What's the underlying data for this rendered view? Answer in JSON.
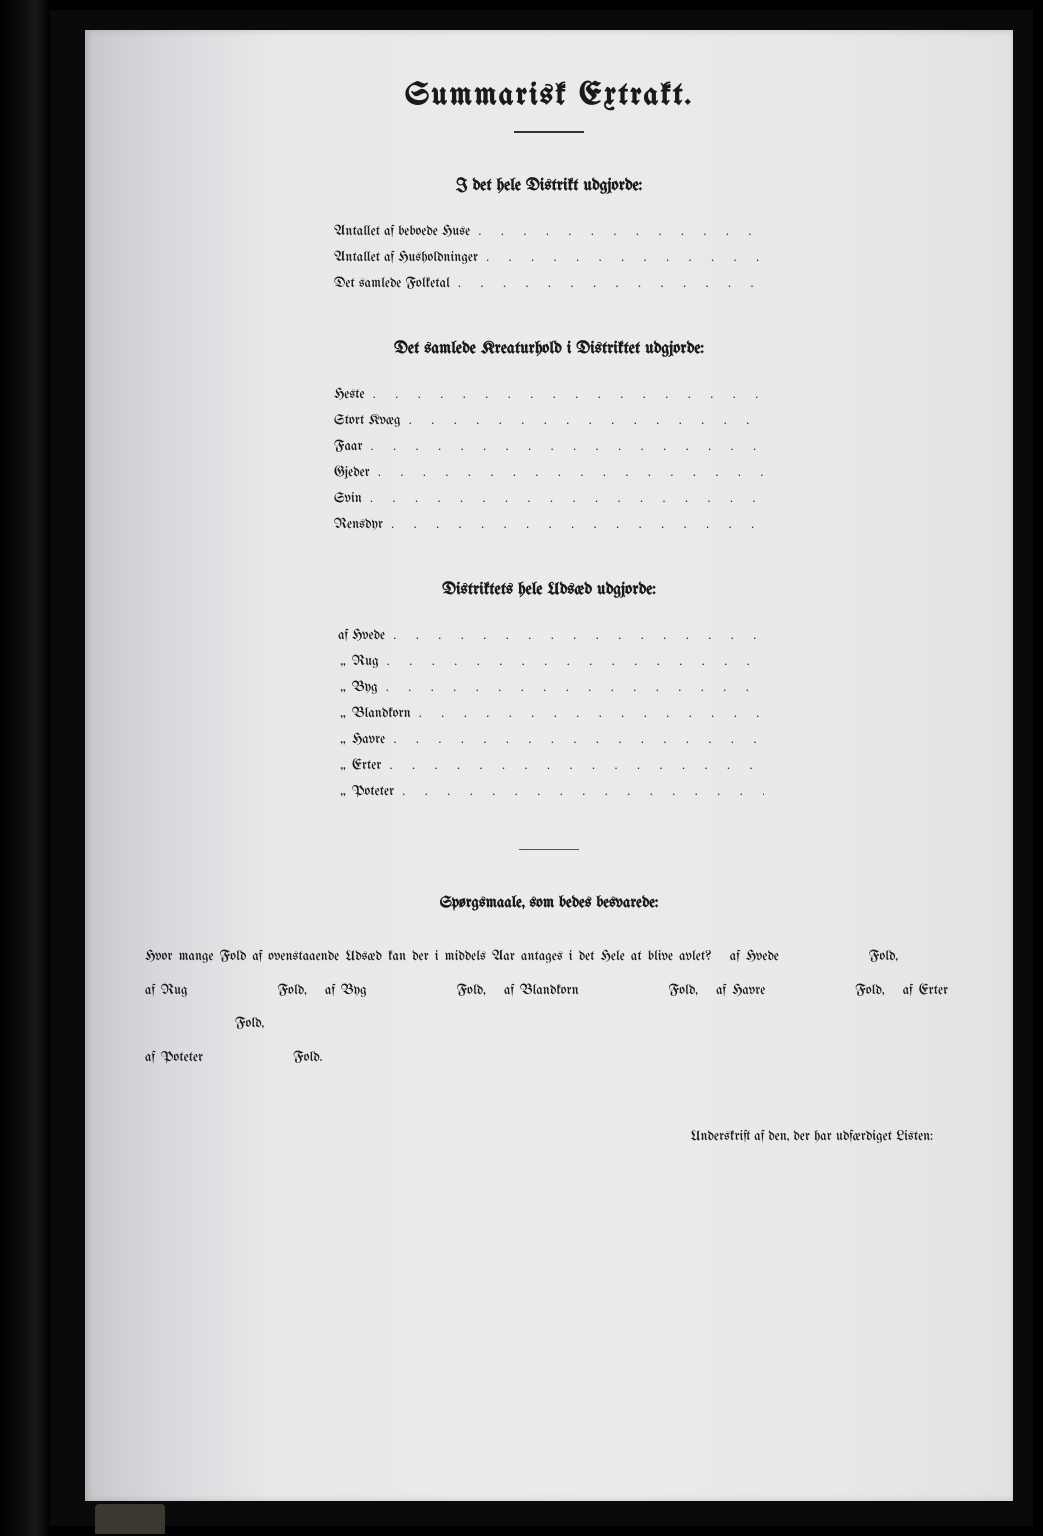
{
  "page": {
    "background_color": "#e8e8ea",
    "text_color": "#1a1a1a",
    "font_family_blackletter": "UnifrakturMaguntia"
  },
  "title": "Summarisk Extrakt.",
  "section1": {
    "heading": "I det hele Distrikt udgjorde:",
    "items": [
      {
        "prefix": "",
        "label": "Antallet af beboede Huse"
      },
      {
        "prefix": "",
        "label": "Antallet af Husholdninger"
      },
      {
        "prefix": "",
        "label": "Det samlede Folketal"
      }
    ]
  },
  "section2": {
    "heading": "Det samlede Kreaturhold i Distriktet udgjorde:",
    "items": [
      {
        "prefix": "",
        "label": "Heste"
      },
      {
        "prefix": "",
        "label": "Stort Kvæg"
      },
      {
        "prefix": "",
        "label": "Faar"
      },
      {
        "prefix": "",
        "label": "Gjeder"
      },
      {
        "prefix": "",
        "label": "Svin"
      },
      {
        "prefix": "",
        "label": "Rensdyr"
      }
    ]
  },
  "section3": {
    "heading": "Distriktets hele Udsæd udgjorde:",
    "items": [
      {
        "prefix": "af",
        "label": "Hvede"
      },
      {
        "prefix": "„",
        "label": "Rug"
      },
      {
        "prefix": "„",
        "label": "Byg"
      },
      {
        "prefix": "„",
        "label": "Blandkorn"
      },
      {
        "prefix": "„",
        "label": "Havre"
      },
      {
        "prefix": "„",
        "label": "Erter"
      },
      {
        "prefix": "„",
        "label": "Poteter"
      }
    ]
  },
  "question": {
    "heading": "Spørgsmaale, som bedes besvarede:",
    "lead": "Hvor mange Fold af ovenstaaende Udsæd kan der i middels Aar antages i det Hele at blive avlet?",
    "crops": [
      {
        "prefix": "af",
        "name": "Hvede",
        "unit": "Fold,"
      },
      {
        "prefix": "af",
        "name": "Rug",
        "unit": "Fold,"
      },
      {
        "prefix": "af",
        "name": "Byg",
        "unit": "Fold,"
      },
      {
        "prefix": "af",
        "name": "Blandkorn",
        "unit": "Fold,"
      },
      {
        "prefix": "af",
        "name": "Havre",
        "unit": "Fold,"
      },
      {
        "prefix": "af",
        "name": "Erter",
        "unit": "Fold,"
      },
      {
        "prefix": "af",
        "name": "Poteter",
        "unit": "Fold."
      }
    ]
  },
  "signature_label": "Underskrift af den, der har udfærdiget Listen:",
  "dots": ". . . . . . . . . . . . . . . . . . . . ."
}
